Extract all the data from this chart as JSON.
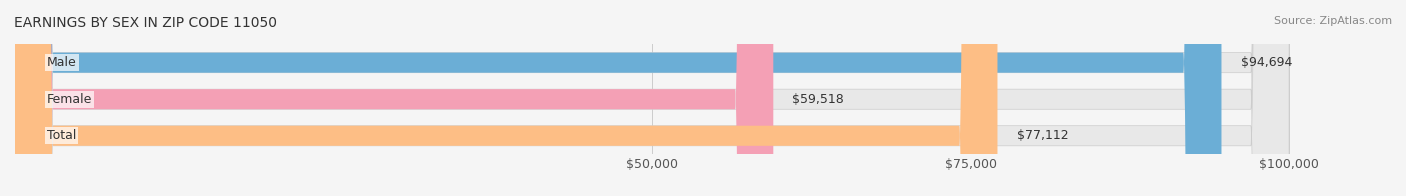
{
  "title": "EARNINGS BY SEX IN ZIP CODE 11050",
  "source": "Source: ZipAtlas.com",
  "categories": [
    "Male",
    "Female",
    "Total"
  ],
  "values": [
    94694,
    59518,
    77112
  ],
  "bar_colors": [
    "#6baed6",
    "#f4a0b5",
    "#fdbe85"
  ],
  "label_colors": [
    "#6baed6",
    "#f4a0b5",
    "#fdbe85"
  ],
  "bar_labels": [
    "$94,694",
    "$59,518",
    "$77,112"
  ],
  "xmin": 0,
  "xmax": 100000,
  "xticks": [
    50000,
    75000,
    100000
  ],
  "xtick_labels": [
    "$50,000",
    "$75,000",
    "$100,000"
  ],
  "bg_color": "#f5f5f5",
  "bar_bg_color": "#e8e8e8",
  "title_fontsize": 10,
  "source_fontsize": 8,
  "label_fontsize": 9,
  "tick_fontsize": 9
}
